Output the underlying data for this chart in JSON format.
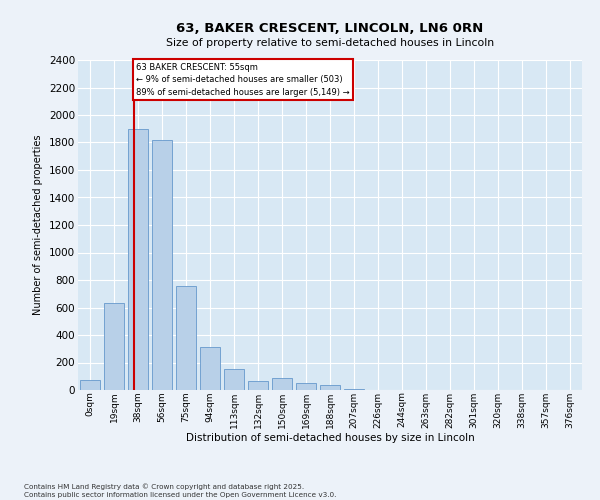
{
  "title_line1": "63, BAKER CRESCENT, LINCOLN, LN6 0RN",
  "title_line2": "Size of property relative to semi-detached houses in Lincoln",
  "xlabel": "Distribution of semi-detached houses by size in Lincoln",
  "ylabel": "Number of semi-detached properties",
  "footnote": "Contains HM Land Registry data © Crown copyright and database right 2025.\nContains public sector information licensed under the Open Government Licence v3.0.",
  "bar_labels": [
    "0sqm",
    "19sqm",
    "38sqm",
    "56sqm",
    "75sqm",
    "94sqm",
    "113sqm",
    "132sqm",
    "150sqm",
    "169sqm",
    "188sqm",
    "207sqm",
    "226sqm",
    "244sqm",
    "263sqm",
    "282sqm",
    "301sqm",
    "320sqm",
    "338sqm",
    "357sqm",
    "376sqm"
  ],
  "bar_values": [
    75,
    630,
    1900,
    1820,
    760,
    310,
    155,
    65,
    90,
    50,
    35,
    5,
    3,
    2,
    1,
    0,
    0,
    0,
    0,
    0,
    0
  ],
  "bar_color": "#b8d0e8",
  "bar_edge_color": "#6699cc",
  "property_line_x": 1.85,
  "annotation_title": "63 BAKER CRESCENT: 55sqm",
  "annotation_line1": "← 9% of semi-detached houses are smaller (503)",
  "annotation_line2": "89% of semi-detached houses are larger (5,149) →",
  "annotation_box_facecolor": "#ffffff",
  "annotation_box_edgecolor": "#cc0000",
  "vline_color": "#cc0000",
  "ylim": [
    0,
    2400
  ],
  "yticks": [
    0,
    200,
    400,
    600,
    800,
    1000,
    1200,
    1400,
    1600,
    1800,
    2000,
    2200,
    2400
  ],
  "background_color": "#ecf2f9",
  "plot_bg_color": "#d8e8f4",
  "grid_color": "#ffffff"
}
